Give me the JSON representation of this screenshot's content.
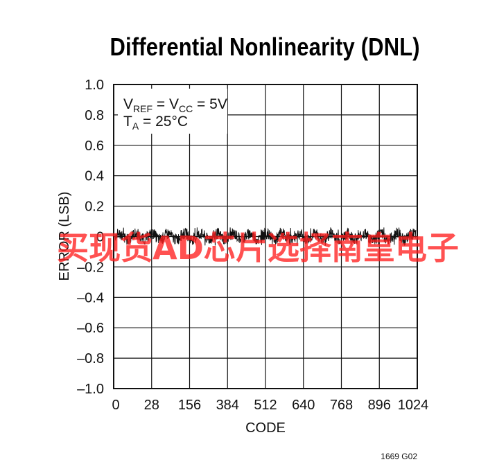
{
  "chart_data": {
    "type": "line",
    "title": "Differential Nonlinearity (DNL)",
    "xlabel": "CODE",
    "ylabel": "ERROR (LSB)",
    "ylim": [
      -1.0,
      1.0
    ],
    "xlim": [
      0,
      1024
    ],
    "y_ticks": [
      "1.0",
      "0.8",
      "0.6",
      "0.4",
      "0.2",
      "0",
      "–0.2",
      "–0.4",
      "–0.6",
      "–0.8",
      "–1.0"
    ],
    "y_tick_values": [
      1.0,
      0.8,
      0.6,
      0.4,
      0.2,
      0,
      -0.2,
      -0.4,
      -0.6,
      -0.8,
      -1.0
    ],
    "x_ticks": [
      "0",
      "28",
      "156",
      "384",
      "512",
      "640",
      "768",
      "896",
      "1024"
    ],
    "grid": true,
    "annotation": {
      "line1": {
        "v1": "V",
        "v1_sub": "REF",
        "mid": " = V",
        "v2_sub": "CC",
        "tail": " = 5V"
      },
      "line2": {
        "t": "T",
        "t_sub": "A",
        "tail": " = 25°C"
      }
    },
    "series": [
      {
        "trace": "noise",
        "mean": 0.0,
        "min": -0.06,
        "max": 0.06,
        "color": "#111111"
      }
    ]
  },
  "figure_id": "1669 G02",
  "watermark": "买现货AD芯片选择南皇电子"
}
